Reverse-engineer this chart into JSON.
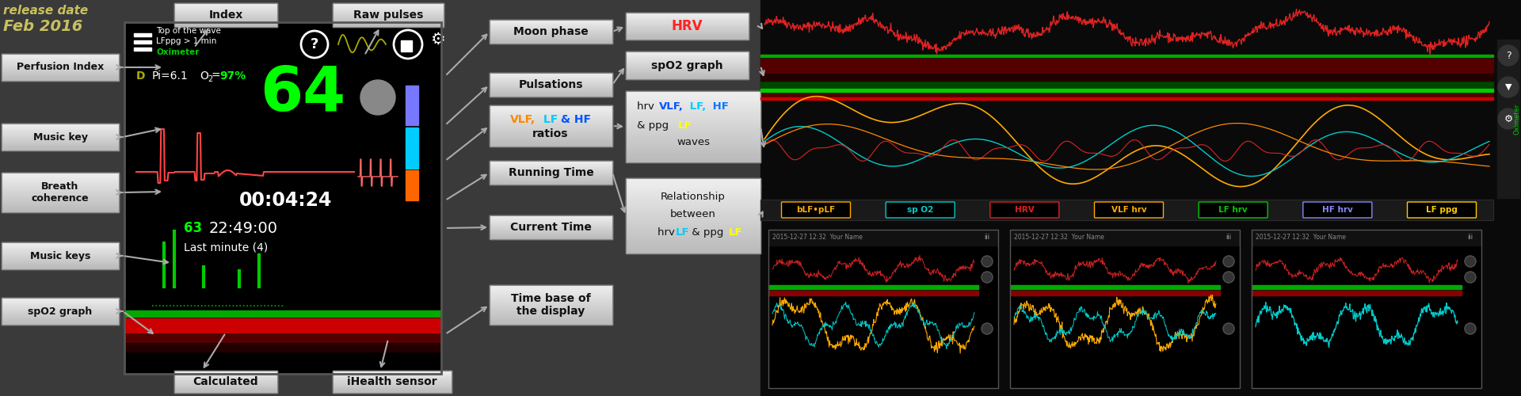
{
  "bg_color": "#3a3a3a",
  "title_color": "#c8c060",
  "left_buttons": [
    "Perfusion Index",
    "Music key",
    "Breath\ncoherence",
    "Music keys",
    "spO2 graph"
  ],
  "phone_bg": "#000000",
  "hrv_color": "#00ff00",
  "time_elapsed": "00:04:24",
  "time_current": "22:49:00",
  "last_minute": "Last minute (4)",
  "o2_color": "#00ff00",
  "oximeter_color": "#00cc00",
  "middle_buttons": [
    "Moon phase",
    "Pulsations",
    "Running Time",
    "Current Time",
    "Time base of\nthe display"
  ],
  "arrow_color": "#aaaaaa",
  "vlf_color": "#ff8800",
  "lf_color": "#00ccff",
  "hf_color": "#0044ff",
  "ppg_lf_color": "#ffff00",
  "hrv_btn_color": "#ff3333",
  "graph_bg": "#0a0a0a",
  "right_btn_bg_top": "#e8e8e8",
  "right_btn_bg_bot": "#c0c0c0"
}
